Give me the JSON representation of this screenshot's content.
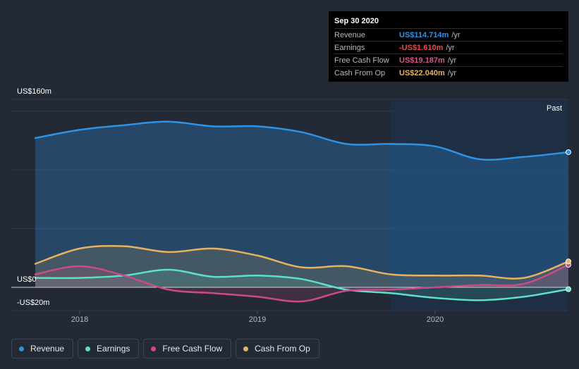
{
  "tooltip": {
    "date": "Sep 30 2020",
    "rows": [
      {
        "label": "Revenue",
        "value": "US$114.714m",
        "unit": "/yr",
        "color": "#2e93e6"
      },
      {
        "label": "Earnings",
        "value": "-US$1.610m",
        "unit": "/yr",
        "color": "#e64b4b"
      },
      {
        "label": "Free Cash Flow",
        "value": "US$19.187m",
        "unit": "/yr",
        "color": "#d4578e"
      },
      {
        "label": "Cash From Op",
        "value": "US$22.040m",
        "unit": "/yr",
        "color": "#e8b260"
      }
    ]
  },
  "legend": [
    {
      "label": "Revenue",
      "color": "#2e93e6"
    },
    {
      "label": "Earnings",
      "color": "#5ce0c8"
    },
    {
      "label": "Free Cash Flow",
      "color": "#cc4a85"
    },
    {
      "label": "Cash From Op",
      "color": "#e8b260"
    }
  ],
  "chart_data": {
    "type": "area",
    "title": "",
    "xlabel": "",
    "ylabel": "",
    "ylim": [
      -20,
      160
    ],
    "y_tick_labels": [
      "US$160m",
      "US$0",
      "-US$20m"
    ],
    "x_tick_labels": [
      "2018",
      "2019",
      "2020"
    ],
    "x_ticks": [
      2018,
      2019,
      2020
    ],
    "xlim": [
      2017.73,
      2020.75
    ],
    "past_region_start": 2019.75,
    "past_label": "Past",
    "legend_position": "bottom-left",
    "series": [
      {
        "name": "Revenue",
        "color": "#2e93e6",
        "x": [
          2017.75,
          2018.0,
          2018.25,
          2018.5,
          2018.75,
          2019.0,
          2019.25,
          2019.5,
          2019.75,
          2020.0,
          2020.25,
          2020.5,
          2020.75
        ],
        "values": [
          127,
          134,
          138,
          141,
          137,
          137,
          132,
          122,
          122,
          120,
          109,
          111,
          115
        ]
      },
      {
        "name": "Earnings",
        "color": "#5ce0c8",
        "x": [
          2017.75,
          2018.0,
          2018.25,
          2018.5,
          2018.75,
          2019.0,
          2019.25,
          2019.5,
          2019.75,
          2020.0,
          2020.25,
          2020.5,
          2020.75
        ],
        "values": [
          8,
          8,
          10,
          15,
          9,
          10,
          7,
          -2,
          -5,
          -9,
          -11,
          -8,
          -1.6
        ]
      },
      {
        "name": "Free Cash Flow",
        "color": "#cc4a85",
        "x": [
          2017.75,
          2018.0,
          2018.25,
          2018.5,
          2018.75,
          2019.0,
          2019.25,
          2019.5,
          2019.75,
          2020.0,
          2020.25,
          2020.5,
          2020.75
        ],
        "values": [
          11,
          18,
          10,
          -2,
          -5,
          -8,
          -12,
          -3,
          -2,
          0,
          2,
          3,
          19.2
        ]
      },
      {
        "name": "Cash From Op",
        "color": "#e8b260",
        "x": [
          2017.75,
          2018.0,
          2018.25,
          2018.5,
          2018.75,
          2019.0,
          2019.25,
          2019.5,
          2019.75,
          2020.0,
          2020.25,
          2020.5,
          2020.75
        ],
        "values": [
          20,
          33,
          35,
          30,
          33,
          27,
          17,
          18,
          11,
          10,
          10,
          8,
          22
        ]
      }
    ]
  }
}
